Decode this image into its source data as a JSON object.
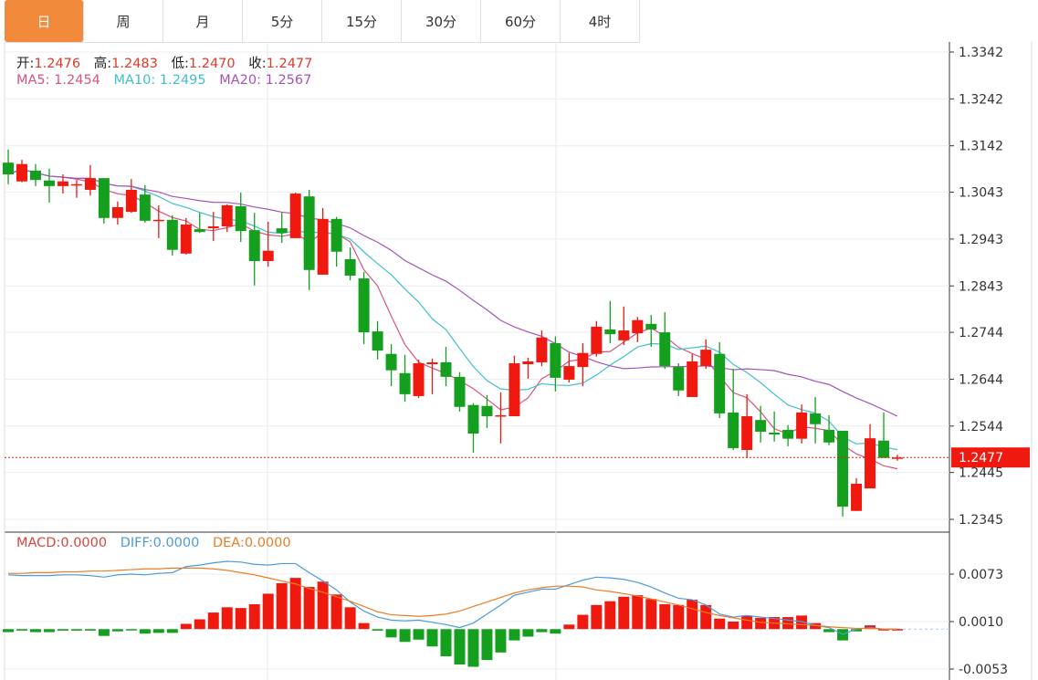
{
  "tabs": [
    {
      "label": "日",
      "active": true
    },
    {
      "label": "周"
    },
    {
      "label": "月"
    },
    {
      "label": "5分"
    },
    {
      "label": "15分"
    },
    {
      "label": "30分"
    },
    {
      "label": "60分"
    },
    {
      "label": "4时"
    }
  ],
  "ohlc_legend": {
    "open_label": "开:",
    "open": "1.2476",
    "high_label": "高:",
    "high": "1.2483",
    "low_label": "低:",
    "low": "1.2470",
    "close_label": "收:",
    "close": "1.2477"
  },
  "ma_legend": {
    "ma5_label": "MA5:",
    "ma5": "1.2454",
    "ma10_label": "MA10:",
    "ma10": "1.2495",
    "ma20_label": "MA20:",
    "ma20": "1.2567"
  },
  "macd_legend": {
    "macd_label": "MACD:",
    "macd": "0.0000",
    "diff_label": "DIFF:",
    "diff": "0.0000",
    "dea_label": "DEA:",
    "dea": "0.0000"
  },
  "colors": {
    "up": "#f0190f",
    "down": "#14a01e",
    "ma5": "#d8547f",
    "ma10": "#3fbfcf",
    "ma20": "#a653b8",
    "diff": "#4d9bd9",
    "dea": "#ea7d26",
    "accent": "#f28a3c"
  },
  "chart_data": [
    {
      "type": "candlestick",
      "y_ticks": [
        "1.3342",
        "1.3242",
        "1.3142",
        "1.3043",
        "1.2943",
        "1.2843",
        "1.2744",
        "1.2644",
        "1.2544",
        "1.2445",
        "1.2345"
      ],
      "ylim": [
        1.2345,
        1.3342
      ],
      "current_price": "1.2477",
      "grid": true,
      "candles": [
        [
          1.3106,
          1.3134,
          1.306,
          1.3081
        ],
        [
          1.3066,
          1.3112,
          1.3064,
          1.3103
        ],
        [
          1.3089,
          1.3103,
          1.3056,
          1.3069
        ],
        [
          1.3068,
          1.3093,
          1.3021,
          1.3056
        ],
        [
          1.3056,
          1.3081,
          1.304,
          1.3066
        ],
        [
          1.3058,
          1.3069,
          1.3031,
          1.306
        ],
        [
          1.3048,
          1.3101,
          1.3036,
          1.3073
        ],
        [
          1.3073,
          1.3073,
          1.2976,
          1.2988
        ],
        [
          1.2988,
          1.3023,
          1.2974,
          1.3011
        ],
        [
          1.3001,
          1.3071,
          1.2999,
          1.3048
        ],
        [
          1.3038,
          1.3058,
          1.2978,
          1.2982
        ],
        [
          1.2982,
          1.3015,
          1.2945,
          1.2984
        ],
        [
          1.2984,
          1.2994,
          1.2908,
          1.292
        ],
        [
          1.2912,
          1.2988,
          1.291,
          1.2974
        ],
        [
          1.2964,
          1.2999,
          1.2956,
          1.2958
        ],
        [
          1.2966,
          1.3001,
          1.2939,
          1.297
        ],
        [
          1.297,
          1.3017,
          1.2958,
          1.3015
        ],
        [
          1.3013,
          1.3042,
          1.2937,
          1.296
        ],
        [
          1.2962,
          1.2999,
          1.2844,
          1.2896
        ],
        [
          1.2896,
          1.298,
          1.2884,
          1.2918
        ],
        [
          1.2966,
          1.2999,
          1.2935,
          1.2956
        ],
        [
          1.2945,
          1.3042,
          1.2945,
          1.304
        ],
        [
          1.3034,
          1.3048,
          1.2834,
          1.2877
        ],
        [
          1.2867,
          1.3009,
          1.2867,
          1.2986
        ],
        [
          1.2986,
          1.299,
          1.2884,
          1.2916
        ],
        [
          1.29,
          1.2925,
          1.2855,
          1.2865
        ],
        [
          1.2859,
          1.2873,
          1.2719,
          1.2744
        ],
        [
          1.2746,
          1.2768,
          1.2686,
          1.2705
        ],
        [
          1.2698,
          1.2719,
          1.2629,
          1.2663
        ],
        [
          1.2657,
          1.2696,
          1.2596,
          1.2612
        ],
        [
          1.2608,
          1.2686,
          1.2604,
          1.2678
        ],
        [
          1.2676,
          1.2688,
          1.2612,
          1.268
        ],
        [
          1.268,
          1.2713,
          1.2629,
          1.2649
        ],
        [
          1.2649,
          1.2659,
          1.2575,
          1.2585
        ],
        [
          1.2589,
          1.2593,
          1.2487,
          1.2528
        ],
        [
          1.2587,
          1.261,
          1.254,
          1.2565
        ],
        [
          1.2565,
          1.2616,
          1.2507,
          1.2567
        ],
        [
          1.2565,
          1.2694,
          1.2565,
          1.2678
        ],
        [
          1.2676,
          1.269,
          1.2645,
          1.2682
        ],
        [
          1.268,
          1.2748,
          1.2672,
          1.2733
        ],
        [
          1.2721,
          1.2735,
          1.2618,
          1.2647
        ],
        [
          1.2643,
          1.27,
          1.2637,
          1.2672
        ],
        [
          1.267,
          1.2721,
          1.2629,
          1.27
        ],
        [
          1.2698,
          1.2768,
          1.2692,
          1.2756
        ],
        [
          1.275,
          1.2811,
          1.2721,
          1.274
        ],
        [
          1.2727,
          1.2799,
          1.2717,
          1.2748
        ],
        [
          1.2742,
          1.2777,
          1.2723,
          1.277
        ],
        [
          1.2762,
          1.2781,
          1.2713,
          1.275
        ],
        [
          1.2744,
          1.2787,
          1.2666,
          1.2672
        ],
        [
          1.267,
          1.2678,
          1.2608,
          1.262
        ],
        [
          1.2606,
          1.2698,
          1.2606,
          1.2682
        ],
        [
          1.2672,
          1.2729,
          1.2666,
          1.2707
        ],
        [
          1.2698,
          1.2723,
          1.2561,
          1.2571
        ],
        [
          1.2573,
          1.2666,
          1.2493,
          1.2497
        ],
        [
          1.2493,
          1.2612,
          1.2476,
          1.2565
        ],
        [
          1.2557,
          1.2587,
          1.2509,
          1.2532
        ],
        [
          1.253,
          1.2575,
          1.2511,
          1.2526
        ],
        [
          1.2536,
          1.2546,
          1.2501,
          1.2517
        ],
        [
          1.2517,
          1.259,
          1.2507,
          1.2573
        ],
        [
          1.2571,
          1.2606,
          1.2507,
          1.2548
        ],
        [
          1.2536,
          1.2567,
          1.2503,
          1.2509
        ],
        [
          1.2534,
          1.2534,
          1.2351,
          1.2372
        ],
        [
          1.2363,
          1.2433,
          1.2363,
          1.2421
        ],
        [
          1.2411,
          1.2548,
          1.2411,
          1.2518
        ],
        [
          1.2513,
          1.2573,
          1.2476,
          1.2476
        ],
        [
          1.2476,
          1.2483,
          1.247,
          1.2477
        ]
      ],
      "overlays": [
        "MA5",
        "MA10",
        "MA20"
      ]
    },
    {
      "type": "bar",
      "y_ticks": [
        "0.0073",
        "0.0010",
        "-0.0053"
      ],
      "ylim": [
        -0.0053,
        0.0073
      ],
      "macd": [
        -0.0004,
        -0.0002,
        -0.0004,
        -0.0004,
        -0.0002,
        -0.0002,
        -0.0002,
        -0.0009,
        -0.0003,
        -0.0001,
        -0.0006,
        -0.0005,
        -0.0005,
        0.0007,
        0.0013,
        0.0022,
        0.0029,
        0.0028,
        0.0033,
        0.0047,
        0.0061,
        0.0068,
        0.0056,
        0.0063,
        0.0046,
        0.0029,
        0.0008,
        -0.0002,
        -0.0011,
        -0.0017,
        -0.0014,
        -0.0023,
        -0.0036,
        -0.0047,
        -0.005,
        -0.0041,
        -0.0031,
        -0.0015,
        -0.001,
        -0.0004,
        -0.0006,
        0.0006,
        0.0019,
        0.0032,
        0.0037,
        0.0043,
        0.0045,
        0.004,
        0.0033,
        0.0032,
        0.0039,
        0.0032,
        0.0014,
        0.001,
        0.0018,
        0.0015,
        0.0016,
        0.0016,
        0.0018,
        0.0008,
        -0.0004,
        -0.0015,
        -0.0003,
        0.0005,
        0.0,
        0.0
      ],
      "diff": [
        0.0072,
        0.0071,
        0.0071,
        0.0071,
        0.0072,
        0.0072,
        0.0071,
        0.0069,
        0.0072,
        0.0073,
        0.0072,
        0.0074,
        0.0075,
        0.0083,
        0.0085,
        0.0088,
        0.009,
        0.0089,
        0.0086,
        0.0085,
        0.0087,
        0.0087,
        0.0075,
        0.0064,
        0.0052,
        0.0036,
        0.0024,
        0.0016,
        0.0012,
        0.0011,
        0.0012,
        0.0009,
        0.0006,
        0.0002,
        0.0008,
        0.002,
        0.0032,
        0.0045,
        0.0049,
        0.0053,
        0.0053,
        0.0059,
        0.0065,
        0.0069,
        0.0068,
        0.0066,
        0.0062,
        0.0056,
        0.0048,
        0.0041,
        0.0039,
        0.0032,
        0.002,
        0.0016,
        0.0018,
        0.0016,
        0.0014,
        0.0012,
        0.001,
        0.0005,
        0.0002,
        -0.0007,
        0.0,
        0.0002,
        0.0,
        0.0
      ],
      "dea": [
        0.0074,
        0.0074,
        0.0075,
        0.0075,
        0.0076,
        0.0076,
        0.0077,
        0.0077,
        0.0078,
        0.0079,
        0.008,
        0.008,
        0.0081,
        0.0081,
        0.0081,
        0.008,
        0.0078,
        0.0075,
        0.0072,
        0.0068,
        0.0064,
        0.006,
        0.0054,
        0.0049,
        0.0043,
        0.0037,
        0.003,
        0.0023,
        0.0019,
        0.0018,
        0.0017,
        0.0018,
        0.002,
        0.0024,
        0.003,
        0.0036,
        0.0042,
        0.0048,
        0.0052,
        0.0055,
        0.0057,
        0.0057,
        0.0056,
        0.0052,
        0.005,
        0.0047,
        0.0044,
        0.004,
        0.0036,
        0.0032,
        0.0027,
        0.0022,
        0.0018,
        0.0015,
        0.0012,
        0.0009,
        0.0008,
        0.0007,
        0.0006,
        0.0005,
        0.0003,
        0.0002,
        0.0001,
        0.0001,
        0.0,
        0.0
      ]
    }
  ]
}
